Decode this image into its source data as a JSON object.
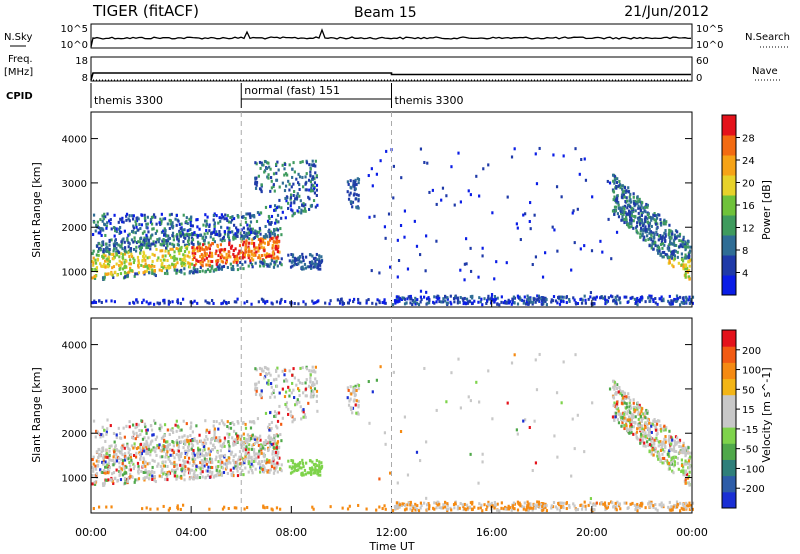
{
  "header": {
    "radar": "TIGER (fitACF)",
    "beam": "Beam 15",
    "date": "21/Jun/2012"
  },
  "nsky": {
    "label": "N.Sky",
    "left_ticks": [
      "10^5",
      "10^0"
    ],
    "right_ticks": [
      "10^5",
      "10^0"
    ],
    "right_label": "N.Search"
  },
  "freq": {
    "label_line1": "Freq.",
    "label_line2": "[MHz]",
    "left_ticks": [
      "18",
      "8"
    ],
    "right_ticks": [
      "60",
      "0"
    ],
    "right_label": "Nave"
  },
  "cpid": {
    "label": "CPID",
    "segments": [
      {
        "label": "themis 3300",
        "start": 0,
        "end": 6
      },
      {
        "label": "normal (fast) 151",
        "start": 6,
        "end": 12
      },
      {
        "label": "themis 3300",
        "start": 12,
        "end": 24
      }
    ]
  },
  "x_axis": {
    "label": "Time UT",
    "ticks": [
      "00:00",
      "04:00",
      "08:00",
      "12:00",
      "16:00",
      "20:00",
      "00:00"
    ],
    "range": [
      0,
      24
    ]
  },
  "chart_data": [
    {
      "type": "heatmap",
      "parameter": "power",
      "ylabel": "Slant Range [km]",
      "yticks": [
        "1000",
        "2000",
        "3000",
        "4000"
      ],
      "ylim": [
        200,
        4600
      ],
      "colorbar_label": "Power [dB]",
      "colorbar_ticks": [
        "4",
        "8",
        "12",
        "16",
        "20",
        "24",
        "28"
      ],
      "colorbar_colors": [
        "#0a1de6",
        "#1f3aa8",
        "#2f6d95",
        "#3f9b5e",
        "#6fc23a",
        "#e7d22a",
        "#f6a317",
        "#f36b12",
        "#e4121b"
      ]
    },
    {
      "type": "heatmap",
      "parameter": "velocity",
      "ylabel": "Slant Range [km]",
      "yticks": [
        "1000",
        "2000",
        "3000",
        "4000"
      ],
      "ylim": [
        200,
        4600
      ],
      "colorbar_label": "Velocity [m s^-1]",
      "colorbar_ticks": [
        "200",
        "100",
        "50",
        "15",
        "-15",
        "-50",
        "-100",
        "-200"
      ],
      "colorbar_colors": [
        "#1a2fd4",
        "#2d5ca8",
        "#2f7f7a",
        "#4fa84a",
        "#7ed34b",
        "#c8c8c8",
        "#c8c8c8",
        "#f3b516",
        "#f58a12",
        "#f25a12",
        "#e4121b"
      ]
    }
  ]
}
